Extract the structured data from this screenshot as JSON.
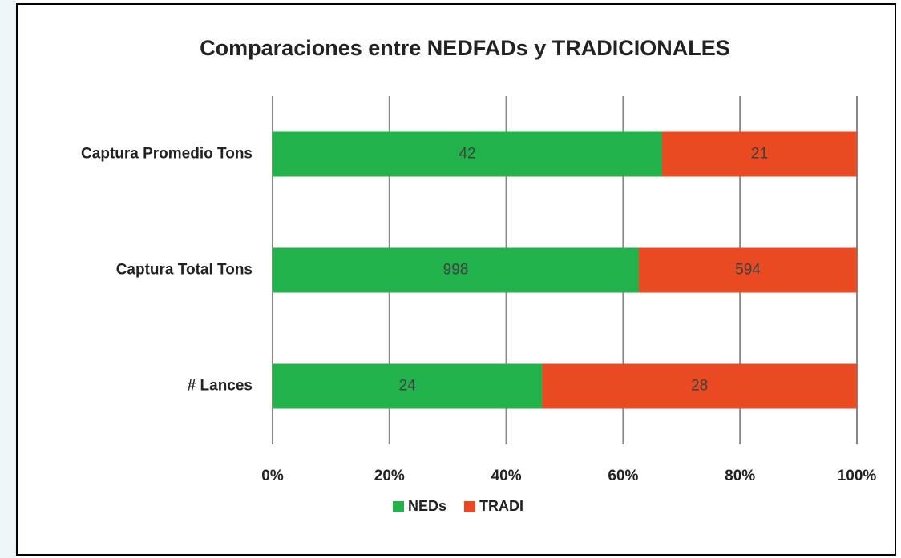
{
  "chart_data": {
    "type": "bar",
    "orientation": "horizontal",
    "stacking": "percent",
    "title": "Comparaciones  entre NEDFADs y TRADICIONALES",
    "categories": [
      "Captura Promedio Tons",
      "Captura Total Tons",
      "# Lances"
    ],
    "series": [
      {
        "name": "NEDs",
        "color": "#22b24c",
        "values": [
          42,
          998,
          24
        ]
      },
      {
        "name": "TRADI",
        "color": "#e94a22",
        "values": [
          21,
          594,
          28
        ]
      }
    ],
    "xlim": [
      0,
      100
    ],
    "xticks": [
      {
        "value": 0,
        "label": "0%"
      },
      {
        "value": 20,
        "label": "20%"
      },
      {
        "value": 40,
        "label": "40%"
      },
      {
        "value": 60,
        "label": "60%"
      },
      {
        "value": 80,
        "label": "80%"
      },
      {
        "value": 100,
        "label": "100%"
      }
    ],
    "grid": true,
    "legend": "bottom"
  }
}
